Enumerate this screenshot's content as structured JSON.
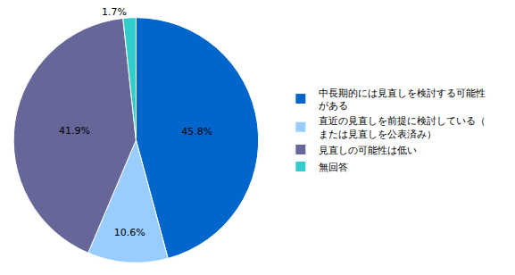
{
  "chart_data": {
    "type": "pie",
    "categories": [
      "中長期的には見直しを検討する可能性がある",
      "直近の見直しを前提に検討している（または見直しを公表済み）",
      "見直しの可能性は低い",
      "無回答"
    ],
    "values": [
      45.8,
      10.6,
      41.9,
      1.7
    ],
    "value_labels": [
      "45.8%",
      "10.6%",
      "41.9%",
      "1.7%"
    ],
    "colors": [
      "#0066cc",
      "#99ccff",
      "#666699",
      "#33cccc"
    ],
    "data_labels": true,
    "legend": "right"
  }
}
